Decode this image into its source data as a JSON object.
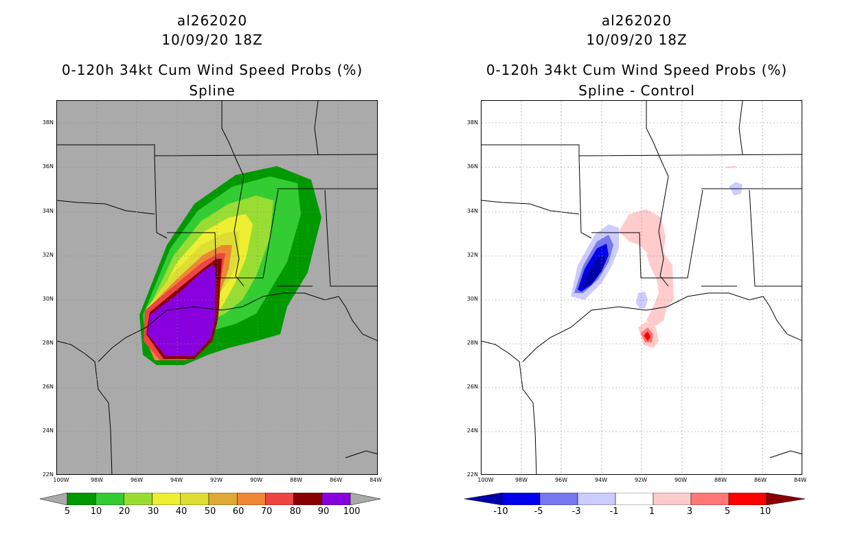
{
  "left_panel": {
    "storm_id": "al262020",
    "datetime": "10/09/20 18Z",
    "title": "0-120h 34kt Cum Wind Speed Probs (%)",
    "subtitle": "Spline",
    "colorbar": {
      "labels": [
        "5",
        "10",
        "20",
        "30",
        "40",
        "50",
        "60",
        "70",
        "80",
        "90",
        "100"
      ],
      "colors": [
        "#009900",
        "#33cc33",
        "#99dd33",
        "#eeee33",
        "#dddd33",
        "#ddaa33",
        "#ee8833",
        "#ee4444",
        "#880000",
        "#8800dd"
      ]
    }
  },
  "right_panel": {
    "storm_id": "al262020",
    "datetime": "10/09/20 18Z",
    "title": "0-120h 34kt Cum Wind Speed Probs (%)",
    "subtitle": "Spline - Control",
    "colorbar": {
      "labels": [
        "-10",
        "-5",
        "-3",
        "-1",
        "1",
        "3",
        "5",
        "10"
      ],
      "colors": [
        "#0000aa",
        "#0000ee",
        "#7777ee",
        "#ccccff",
        "#ffffff",
        "#ffcccc",
        "#ff7777",
        "#ff0000",
        "#880000"
      ]
    }
  },
  "axes": {
    "lat_labels": [
      "38N",
      "36N",
      "34N",
      "32N",
      "30N",
      "28N",
      "26N",
      "24N",
      "22N"
    ],
    "lon_labels": [
      "100W",
      "98W",
      "96W",
      "94W",
      "92W",
      "90W",
      "88W",
      "86W",
      "84W"
    ]
  }
}
